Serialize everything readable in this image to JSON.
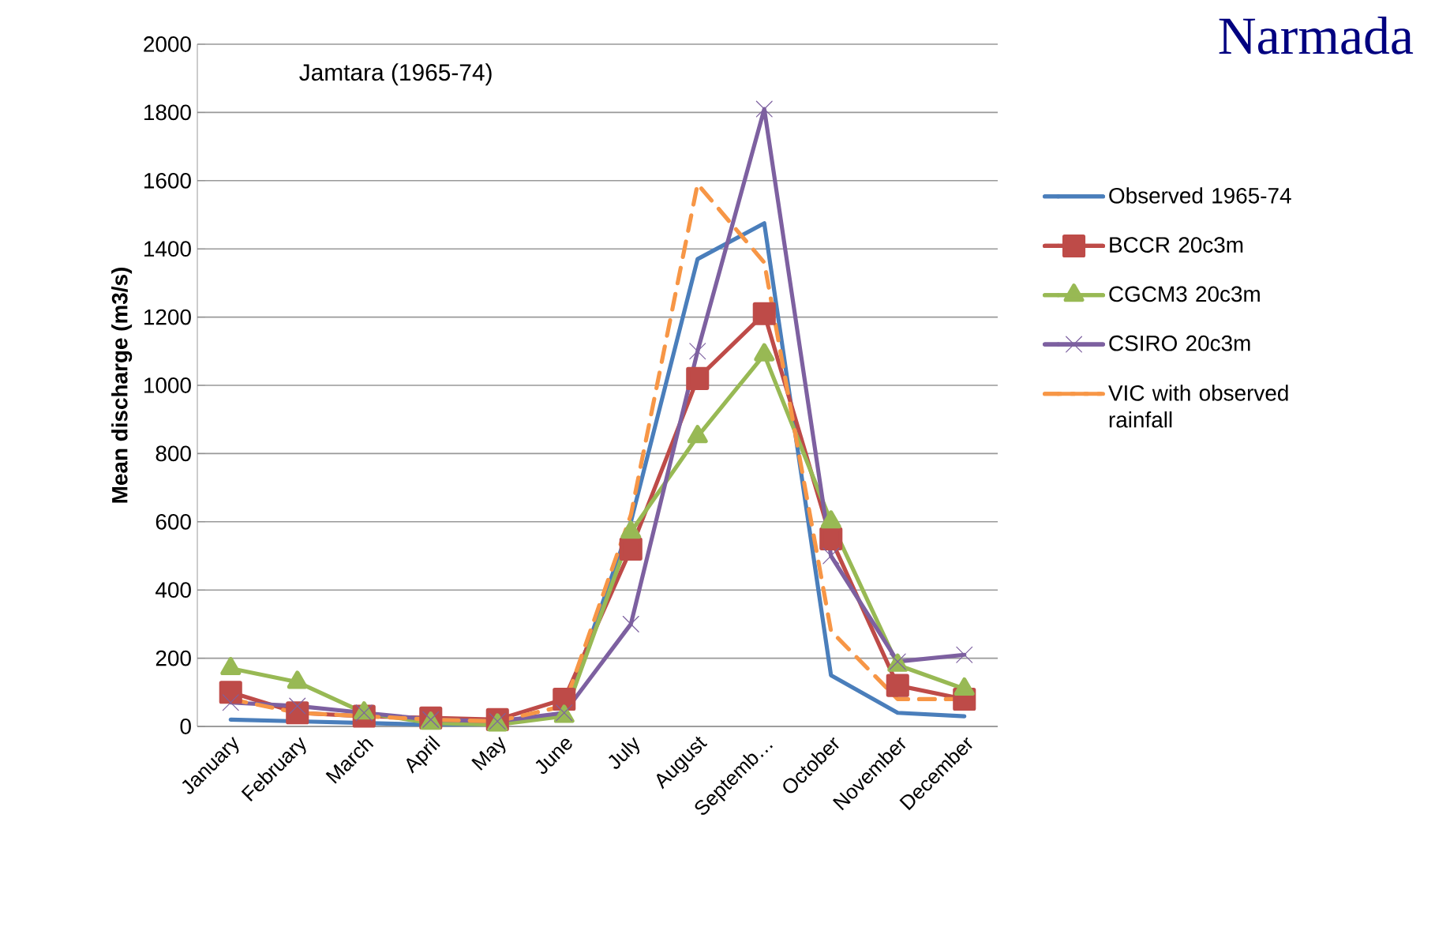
{
  "chart_data": {
    "type": "line",
    "title": "Narmada",
    "ylabel": "Mean discharge (m3/s)",
    "annotations": [
      "Jamtara  (1965-74)"
    ],
    "categories": [
      "January",
      "February",
      "March",
      "April",
      "May",
      "June",
      "July",
      "August",
      "Septemb…",
      "October",
      "November",
      "December"
    ],
    "series": [
      {
        "name": "Observed 1965-74",
        "color": "#4a7ebb",
        "marker": "none",
        "line_style": "solid",
        "values": [
          20,
          15,
          10,
          5,
          5,
          40,
          600,
          1370,
          1475,
          150,
          40,
          30
        ]
      },
      {
        "name": "BCCR 20c3m",
        "color": "#be4b48",
        "marker": "square",
        "line_style": "solid",
        "values": [
          100,
          40,
          30,
          25,
          20,
          80,
          520,
          1020,
          1210,
          550,
          120,
          80
        ]
      },
      {
        "name": "CGCM3 20c3m",
        "color": "#98b954",
        "marker": "triangle",
        "line_style": "solid",
        "values": [
          170,
          130,
          40,
          10,
          5,
          30,
          570,
          850,
          1090,
          600,
          180,
          110
        ]
      },
      {
        "name": "CSIRO 20c3m",
        "color": "#7d60a0",
        "marker": "cross",
        "line_style": "solid",
        "values": [
          70,
          60,
          40,
          20,
          15,
          40,
          300,
          1100,
          1810,
          500,
          190,
          210
        ]
      },
      {
        "name": "VIC with observed rainfall",
        "color": "#f79646",
        "marker": "none",
        "line_style": "dashed",
        "values": [
          80,
          40,
          30,
          20,
          15,
          60,
          620,
          1590,
          1360,
          280,
          80,
          80
        ]
      }
    ],
    "ylim": [
      0,
      2000
    ],
    "yticks": [
      0,
      200,
      400,
      600,
      800,
      1000,
      1200,
      1400,
      1600,
      1800,
      2000
    ],
    "grid": "y",
    "legend": "right"
  }
}
